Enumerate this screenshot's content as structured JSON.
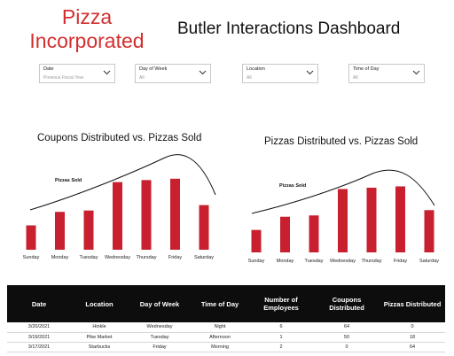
{
  "brand": {
    "line1": "Pizza",
    "line2": "Incorporated"
  },
  "dashboard_title": "Butler Interactions Dashboard",
  "filters": [
    {
      "label": "Date",
      "value": "Previous Fiscal Year"
    },
    {
      "label": "Day of Week",
      "value": "All"
    },
    {
      "label": "Location",
      "value": "All"
    },
    {
      "label": "Time of Day",
      "value": "All"
    }
  ],
  "chart_data": [
    {
      "type": "bar",
      "title": "Coupons Distributed vs. Pizzas Sold",
      "categories": [
        "Sunday",
        "Monday",
        "Tuesday",
        "Wednesday",
        "Thursday",
        "Friday",
        "Saturday"
      ],
      "values": [
        36,
        56,
        58,
        100,
        103,
        105,
        66
      ],
      "ylim": [
        0,
        110
      ],
      "annotation": "Pizzas Sold",
      "trend_line": true,
      "colors": {
        "bar": "#c8202f",
        "line": "#111111"
      }
    },
    {
      "type": "bar",
      "title": "Pizzas Distributed vs. Pizzas Sold",
      "categories": [
        "Sunday",
        "Monday",
        "Tuesday",
        "Wednesday",
        "Thursday",
        "Friday",
        "Saturday"
      ],
      "values": [
        34,
        54,
        56,
        96,
        98,
        100,
        64
      ],
      "ylim": [
        0,
        110
      ],
      "annotation": "Pizzas Sold",
      "trend_line": true,
      "colors": {
        "bar": "#c8202f",
        "line": "#111111"
      }
    }
  ],
  "table": {
    "headers": [
      "Date",
      "Location",
      "Day of Week",
      "Time of Day",
      "Number of Employees",
      "Coupons Distributed",
      "Pizzas Distributed"
    ],
    "rows": [
      [
        "3/20/2021",
        "Hinkle",
        "Wednesday",
        "Night",
        "6",
        "64",
        "0"
      ],
      [
        "3/19/2021",
        "Pike Market",
        "Tuesday",
        "Afternoon",
        "1",
        "50",
        "18"
      ],
      [
        "3/17/2021",
        "Starbucks",
        "Friday",
        "Morning",
        "2",
        "0",
        "64"
      ]
    ]
  }
}
